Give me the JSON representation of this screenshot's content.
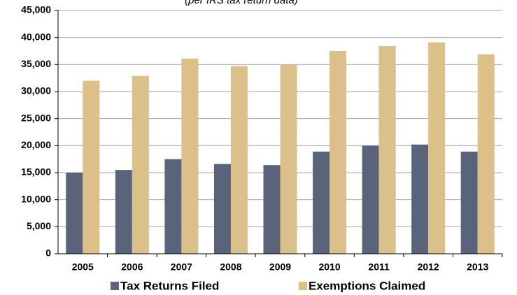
{
  "chart_data": {
    "type": "bar",
    "subtitle": "(per IRS tax return data)",
    "categories": [
      "2005",
      "2006",
      "2007",
      "2008",
      "2009",
      "2010",
      "2011",
      "2012",
      "2013"
    ],
    "series": [
      {
        "name": "Tax Returns Filed",
        "color": "#59637a",
        "values": [
          15000,
          15500,
          17500,
          16600,
          16400,
          18900,
          20000,
          20200,
          18900
        ]
      },
      {
        "name": "Exemptions Claimed",
        "color": "#dcc08a",
        "values": [
          32000,
          32900,
          36100,
          34700,
          34900,
          37500,
          38400,
          39100,
          36900
        ]
      }
    ],
    "ylim": [
      0,
      45000
    ],
    "yticks": [
      0,
      {
        "value": 5000,
        "label": "5,000"
      },
      {
        "value": 10000,
        "label": "10,000"
      },
      {
        "value": 15000,
        "label": "15,000"
      },
      {
        "value": 20000,
        "label": "20,000"
      },
      {
        "value": 25000,
        "label": "25,000"
      },
      {
        "value": 30000,
        "label": "30,000"
      },
      {
        "value": 35000,
        "label": "35,000"
      },
      {
        "value": 40000,
        "label": "40,000"
      },
      {
        "value": 45000,
        "label": "45,000"
      }
    ],
    "grid": true
  }
}
